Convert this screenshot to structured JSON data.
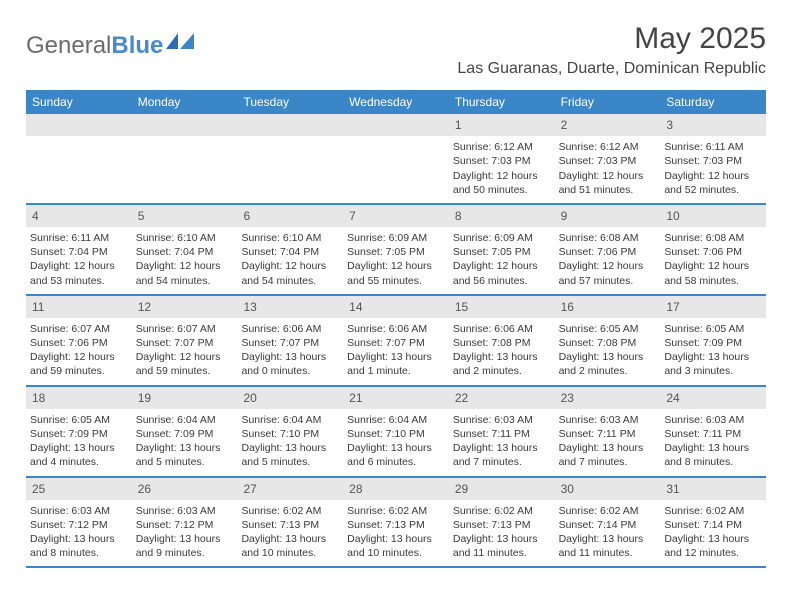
{
  "logo": {
    "text1": "General",
    "text2": "Blue"
  },
  "title": "May 2025",
  "location": "Las Guaranas, Duarte, Dominican Republic",
  "colors": {
    "header_bg": "#3b86c7",
    "header_fg": "#ffffff",
    "daynum_bg": "#e7e7e7",
    "text": "#3a3a3a",
    "logo_gray": "#6b6b6b",
    "logo_blue": "#4a8ac9"
  },
  "daysOfWeek": [
    "Sunday",
    "Monday",
    "Tuesday",
    "Wednesday",
    "Thursday",
    "Friday",
    "Saturday"
  ],
  "weeks": [
    [
      null,
      null,
      null,
      null,
      {
        "n": "1",
        "sr": "6:12 AM",
        "ss": "7:03 PM",
        "dl": "12 hours and 50 minutes."
      },
      {
        "n": "2",
        "sr": "6:12 AM",
        "ss": "7:03 PM",
        "dl": "12 hours and 51 minutes."
      },
      {
        "n": "3",
        "sr": "6:11 AM",
        "ss": "7:03 PM",
        "dl": "12 hours and 52 minutes."
      }
    ],
    [
      {
        "n": "4",
        "sr": "6:11 AM",
        "ss": "7:04 PM",
        "dl": "12 hours and 53 minutes."
      },
      {
        "n": "5",
        "sr": "6:10 AM",
        "ss": "7:04 PM",
        "dl": "12 hours and 54 minutes."
      },
      {
        "n": "6",
        "sr": "6:10 AM",
        "ss": "7:04 PM",
        "dl": "12 hours and 54 minutes."
      },
      {
        "n": "7",
        "sr": "6:09 AM",
        "ss": "7:05 PM",
        "dl": "12 hours and 55 minutes."
      },
      {
        "n": "8",
        "sr": "6:09 AM",
        "ss": "7:05 PM",
        "dl": "12 hours and 56 minutes."
      },
      {
        "n": "9",
        "sr": "6:08 AM",
        "ss": "7:06 PM",
        "dl": "12 hours and 57 minutes."
      },
      {
        "n": "10",
        "sr": "6:08 AM",
        "ss": "7:06 PM",
        "dl": "12 hours and 58 minutes."
      }
    ],
    [
      {
        "n": "11",
        "sr": "6:07 AM",
        "ss": "7:06 PM",
        "dl": "12 hours and 59 minutes."
      },
      {
        "n": "12",
        "sr": "6:07 AM",
        "ss": "7:07 PM",
        "dl": "12 hours and 59 minutes."
      },
      {
        "n": "13",
        "sr": "6:06 AM",
        "ss": "7:07 PM",
        "dl": "13 hours and 0 minutes."
      },
      {
        "n": "14",
        "sr": "6:06 AM",
        "ss": "7:07 PM",
        "dl": "13 hours and 1 minute."
      },
      {
        "n": "15",
        "sr": "6:06 AM",
        "ss": "7:08 PM",
        "dl": "13 hours and 2 minutes."
      },
      {
        "n": "16",
        "sr": "6:05 AM",
        "ss": "7:08 PM",
        "dl": "13 hours and 2 minutes."
      },
      {
        "n": "17",
        "sr": "6:05 AM",
        "ss": "7:09 PM",
        "dl": "13 hours and 3 minutes."
      }
    ],
    [
      {
        "n": "18",
        "sr": "6:05 AM",
        "ss": "7:09 PM",
        "dl": "13 hours and 4 minutes."
      },
      {
        "n": "19",
        "sr": "6:04 AM",
        "ss": "7:09 PM",
        "dl": "13 hours and 5 minutes."
      },
      {
        "n": "20",
        "sr": "6:04 AM",
        "ss": "7:10 PM",
        "dl": "13 hours and 5 minutes."
      },
      {
        "n": "21",
        "sr": "6:04 AM",
        "ss": "7:10 PM",
        "dl": "13 hours and 6 minutes."
      },
      {
        "n": "22",
        "sr": "6:03 AM",
        "ss": "7:11 PM",
        "dl": "13 hours and 7 minutes."
      },
      {
        "n": "23",
        "sr": "6:03 AM",
        "ss": "7:11 PM",
        "dl": "13 hours and 7 minutes."
      },
      {
        "n": "24",
        "sr": "6:03 AM",
        "ss": "7:11 PM",
        "dl": "13 hours and 8 minutes."
      }
    ],
    [
      {
        "n": "25",
        "sr": "6:03 AM",
        "ss": "7:12 PM",
        "dl": "13 hours and 8 minutes."
      },
      {
        "n": "26",
        "sr": "6:03 AM",
        "ss": "7:12 PM",
        "dl": "13 hours and 9 minutes."
      },
      {
        "n": "27",
        "sr": "6:02 AM",
        "ss": "7:13 PM",
        "dl": "13 hours and 10 minutes."
      },
      {
        "n": "28",
        "sr": "6:02 AM",
        "ss": "7:13 PM",
        "dl": "13 hours and 10 minutes."
      },
      {
        "n": "29",
        "sr": "6:02 AM",
        "ss": "7:13 PM",
        "dl": "13 hours and 11 minutes."
      },
      {
        "n": "30",
        "sr": "6:02 AM",
        "ss": "7:14 PM",
        "dl": "13 hours and 11 minutes."
      },
      {
        "n": "31",
        "sr": "6:02 AM",
        "ss": "7:14 PM",
        "dl": "13 hours and 12 minutes."
      }
    ]
  ],
  "labels": {
    "sunrise": "Sunrise:",
    "sunset": "Sunset:",
    "daylight": "Daylight:"
  }
}
